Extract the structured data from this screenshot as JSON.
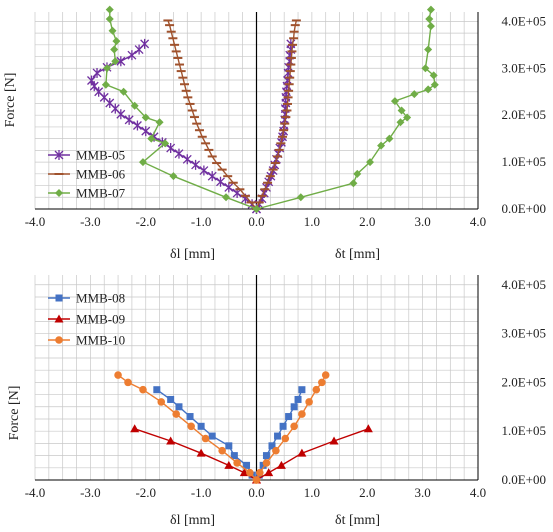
{
  "chart_data": [
    {
      "type": "line",
      "ylabel": "Force [N]",
      "xlabel_left": "δl  [mm]",
      "xlabel_right": "δt  [mm]",
      "xlim": [
        -4,
        4
      ],
      "ylim": [
        0,
        420000
      ],
      "xticks": [
        "-4.0",
        "-3.0",
        "-2.0",
        "-1.0",
        "0.0",
        "1.0",
        "2.0",
        "3.0",
        "4.0"
      ],
      "yticks": [
        "0.0E+00",
        "1.0E+05",
        "2.0E+05",
        "3.0E+05",
        "4.0E+05"
      ],
      "grid": true,
      "legend_position": "bottom-left",
      "series": [
        {
          "name": "MMB-05",
          "color": "#7030a0",
          "marker": "x",
          "left": [
            [
              0,
              0
            ],
            [
              -0.08,
              10000
            ],
            [
              -0.2,
              22000
            ],
            [
              -0.35,
              34000
            ],
            [
              -0.5,
              46000
            ],
            [
              -0.65,
              58000
            ],
            [
              -0.8,
              70000
            ],
            [
              -0.95,
              82000
            ],
            [
              -1.1,
              94000
            ],
            [
              -1.25,
              106000
            ],
            [
              -1.4,
              118000
            ],
            [
              -1.55,
              130000
            ],
            [
              -1.7,
              142000
            ],
            [
              -1.85,
              154000
            ],
            [
              -2,
              166000
            ],
            [
              -2.15,
              178000
            ],
            [
              -2.3,
              190000
            ],
            [
              -2.45,
              202000
            ],
            [
              -2.55,
              214000
            ],
            [
              -2.65,
              226000
            ],
            [
              -2.75,
              238000
            ],
            [
              -2.85,
              250000
            ],
            [
              -2.93,
              262000
            ],
            [
              -2.98,
              274000
            ],
            [
              -2.88,
              290000
            ],
            [
              -2.7,
              302000
            ],
            [
              -2.45,
              315000
            ],
            [
              -2.25,
              328000
            ],
            [
              -2.12,
              340000
            ],
            [
              -2.02,
              352000
            ]
          ],
          "right": [
            [
              0,
              0
            ],
            [
              0.05,
              10000
            ],
            [
              0.1,
              22000
            ],
            [
              0.14,
              34000
            ],
            [
              0.18,
              46000
            ],
            [
              0.22,
              58000
            ],
            [
              0.26,
              70000
            ],
            [
              0.3,
              82000
            ],
            [
              0.33,
              94000
            ],
            [
              0.36,
              106000
            ],
            [
              0.39,
              118000
            ],
            [
              0.42,
              130000
            ],
            [
              0.45,
              142000
            ],
            [
              0.47,
              154000
            ],
            [
              0.49,
              166000
            ],
            [
              0.5,
              178000
            ],
            [
              0.51,
              190000
            ],
            [
              0.52,
              202000
            ],
            [
              0.52,
              214000
            ],
            [
              0.53,
              226000
            ],
            [
              0.53,
              238000
            ],
            [
              0.54,
              250000
            ],
            [
              0.55,
              262000
            ],
            [
              0.56,
              274000
            ],
            [
              0.57,
              290000
            ],
            [
              0.58,
              302000
            ],
            [
              0.6,
              315000
            ],
            [
              0.6,
              328000
            ],
            [
              0.62,
              340000
            ],
            [
              0.62,
              352000
            ]
          ]
        },
        {
          "name": "MMB-06",
          "color": "#a0522d",
          "marker": "dash",
          "left": [
            [
              0,
              0
            ],
            [
              -0.1,
              14000
            ],
            [
              -0.2,
              28000
            ],
            [
              -0.3,
              42000
            ],
            [
              -0.42,
              56000
            ],
            [
              -0.52,
              70000
            ],
            [
              -0.62,
              84000
            ],
            [
              -0.72,
              98000
            ],
            [
              -0.8,
              112000
            ],
            [
              -0.86,
              126000
            ],
            [
              -0.92,
              140000
            ],
            [
              -0.98,
              154000
            ],
            [
              -1.03,
              168000
            ],
            [
              -1.08,
              182000
            ],
            [
              -1.12,
              196000
            ],
            [
              -1.16,
              210000
            ],
            [
              -1.2,
              224000
            ],
            [
              -1.24,
              238000
            ],
            [
              -1.27,
              252000
            ],
            [
              -1.3,
              266000
            ],
            [
              -1.33,
              280000
            ],
            [
              -1.36,
              294000
            ],
            [
              -1.39,
              308000
            ],
            [
              -1.42,
              322000
            ],
            [
              -1.45,
              336000
            ],
            [
              -1.48,
              350000
            ],
            [
              -1.51,
              364000
            ],
            [
              -1.54,
              378000
            ],
            [
              -1.57,
              392000
            ],
            [
              -1.6,
              402000
            ]
          ],
          "right": [
            [
              0,
              0
            ],
            [
              0.05,
              14000
            ],
            [
              0.1,
              28000
            ],
            [
              0.15,
              42000
            ],
            [
              0.2,
              56000
            ],
            [
              0.25,
              70000
            ],
            [
              0.3,
              84000
            ],
            [
              0.34,
              98000
            ],
            [
              0.38,
              112000
            ],
            [
              0.41,
              126000
            ],
            [
              0.44,
              140000
            ],
            [
              0.47,
              154000
            ],
            [
              0.49,
              168000
            ],
            [
              0.51,
              182000
            ],
            [
              0.53,
              196000
            ],
            [
              0.55,
              210000
            ],
            [
              0.56,
              224000
            ],
            [
              0.57,
              238000
            ],
            [
              0.58,
              252000
            ],
            [
              0.59,
              266000
            ],
            [
              0.6,
              280000
            ],
            [
              0.61,
              294000
            ],
            [
              0.62,
              308000
            ],
            [
              0.63,
              322000
            ],
            [
              0.64,
              336000
            ],
            [
              0.65,
              350000
            ],
            [
              0.67,
              364000
            ],
            [
              0.68,
              378000
            ],
            [
              0.7,
              392000
            ],
            [
              0.72,
              402000
            ]
          ]
        },
        {
          "name": "MMB-07",
          "color": "#70ad47",
          "marker": "diamond",
          "left": [
            [
              0,
              0
            ],
            [
              -0.55,
              25000
            ],
            [
              -1.5,
              70000
            ],
            [
              -2.05,
              100000
            ],
            [
              -1.65,
              140000
            ],
            [
              -1.9,
              150000
            ],
            [
              -1.75,
              185000
            ],
            [
              -2,
              195000
            ],
            [
              -2.2,
              220000
            ],
            [
              -2.4,
              250000
            ],
            [
              -2.72,
              265000
            ],
            [
              -2.7,
              300000
            ],
            [
              -2.55,
              315000
            ],
            [
              -2.57,
              340000
            ],
            [
              -2.53,
              358000
            ],
            [
              -2.6,
              380000
            ],
            [
              -2.65,
              405000
            ],
            [
              -2.65,
              425000
            ]
          ],
          "right": [
            [
              0,
              0
            ],
            [
              0.8,
              25000
            ],
            [
              1.75,
              55000
            ],
            [
              1.82,
              75000
            ],
            [
              2.05,
              100000
            ],
            [
              2.25,
              135000
            ],
            [
              2.4,
              150000
            ],
            [
              2.6,
              185000
            ],
            [
              2.72,
              195000
            ],
            [
              2.62,
              210000
            ],
            [
              2.5,
              230000
            ],
            [
              2.85,
              245000
            ],
            [
              3.1,
              255000
            ],
            [
              3.22,
              265000
            ],
            [
              3.2,
              285000
            ],
            [
              3.05,
              300000
            ],
            [
              3.1,
              340000
            ],
            [
              3.15,
              390000
            ],
            [
              3.12,
              405000
            ],
            [
              3.15,
              425000
            ]
          ]
        }
      ]
    },
    {
      "type": "line",
      "ylabel": "Force [N]",
      "xlabel_left": "δl  [mm]",
      "xlabel_right": "δt  [mm]",
      "xlim": [
        -4,
        4
      ],
      "ylim": [
        0,
        420000
      ],
      "xticks": [
        "-4.0",
        "-3.0",
        "-2.0",
        "-1.0",
        "0.0",
        "1.0",
        "2.0",
        "3.0",
        "4.0"
      ],
      "yticks": [
        "0.0E+00",
        "1.0E+05",
        "2.0E+05",
        "3.0E+05",
        "4.0E+05"
      ],
      "grid": true,
      "legend_position": "top-left",
      "series": [
        {
          "name": "MMB-08",
          "color": "#4472c4",
          "marker": "square",
          "left": [
            [
              0,
              0
            ],
            [
              -0.08,
              10000
            ],
            [
              -0.18,
              30000
            ],
            [
              -0.4,
              50000
            ],
            [
              -0.5,
              70000
            ],
            [
              -0.8,
              90000
            ],
            [
              -1,
              110000
            ],
            [
              -1.2,
              130000
            ],
            [
              -1.4,
              150000
            ],
            [
              -1.55,
              165000
            ],
            [
              -1.8,
              185000
            ]
          ],
          "right": [
            [
              0,
              0
            ],
            [
              0.05,
              10000
            ],
            [
              0.12,
              30000
            ],
            [
              0.18,
              50000
            ],
            [
              0.28,
              70000
            ],
            [
              0.38,
              90000
            ],
            [
              0.48,
              110000
            ],
            [
              0.58,
              130000
            ],
            [
              0.68,
              150000
            ],
            [
              0.75,
              165000
            ],
            [
              0.82,
              185000
            ]
          ]
        },
        {
          "name": "MMB-09",
          "color": "#c00000",
          "marker": "triangle",
          "left": [
            [
              0,
              0
            ],
            [
              -0.22,
              15000
            ],
            [
              -0.5,
              30000
            ],
            [
              -1,
              55000
            ],
            [
              -1.55,
              80000
            ],
            [
              -2.2,
              105000
            ]
          ],
          "right": [
            [
              0,
              0
            ],
            [
              0.22,
              15000
            ],
            [
              0.45,
              30000
            ],
            [
              0.82,
              55000
            ],
            [
              1.4,
              80000
            ],
            [
              2.02,
              105000
            ]
          ]
        },
        {
          "name": "MMB-10",
          "color": "#ed7d31",
          "marker": "circle",
          "left": [
            [
              0,
              0
            ],
            [
              -0.12,
              15000
            ],
            [
              -0.35,
              35000
            ],
            [
              -0.62,
              60000
            ],
            [
              -0.92,
              85000
            ],
            [
              -1.18,
              110000
            ],
            [
              -1.45,
              135000
            ],
            [
              -1.72,
              160000
            ],
            [
              -2.05,
              185000
            ],
            [
              -2.32,
              200000
            ],
            [
              -2.5,
              215000
            ]
          ],
          "right": [
            [
              0,
              0
            ],
            [
              0.06,
              15000
            ],
            [
              0.18,
              35000
            ],
            [
              0.35,
              60000
            ],
            [
              0.52,
              85000
            ],
            [
              0.68,
              110000
            ],
            [
              0.82,
              135000
            ],
            [
              0.95,
              160000
            ],
            [
              1.08,
              185000
            ],
            [
              1.18,
              200000
            ],
            [
              1.25,
              215000
            ]
          ]
        }
      ]
    }
  ]
}
